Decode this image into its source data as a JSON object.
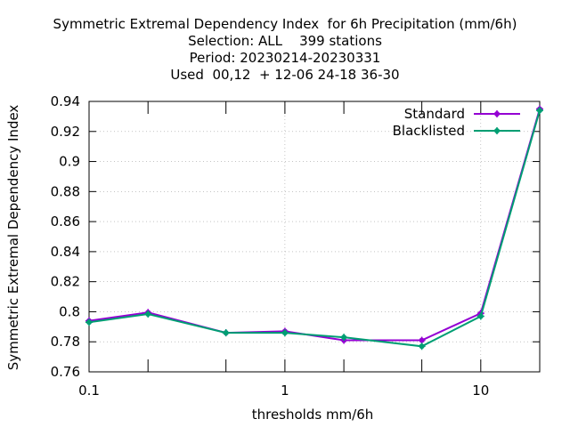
{
  "chart_data": {
    "type": "line",
    "title_lines": [
      "Symmetric Extremal Dependency Index  for 6h Precipitation (mm/6h)",
      "Selection: ALL    399 stations",
      "Period: 20230214-20230331",
      "Used  00,12  + 12-06 24-18 36-30"
    ],
    "xlabel": "thresholds mm/6h",
    "ylabel": "Symmetric Extremal Dependency Index",
    "xscale": "log",
    "xlim": [
      0.1,
      20
    ],
    "ylim": [
      0.76,
      0.94
    ],
    "x_ticks": [
      0.1,
      1,
      10
    ],
    "x_tick_labels": [
      "0.1",
      "1",
      "10"
    ],
    "y_ticks": [
      0.76,
      0.78,
      0.8,
      0.82,
      0.84,
      0.86,
      0.88,
      0.9,
      0.92,
      0.94
    ],
    "y_tick_labels": [
      "0.76",
      "0.78",
      "0.8",
      "0.82",
      "0.84",
      "0.86",
      "0.88",
      "0.9",
      "0.92",
      "0.94"
    ],
    "grid": true,
    "legend_position": "top-right",
    "x": [
      0.1,
      0.2,
      0.5,
      1,
      2,
      5,
      10,
      20
    ],
    "series": [
      {
        "name": "Standard",
        "color": "#9400d3",
        "values": [
          0.794,
          0.7995,
          0.786,
          0.787,
          0.781,
          0.781,
          0.799,
          0.935
        ]
      },
      {
        "name": "Blacklisted",
        "color": "#009e73",
        "values": [
          0.793,
          0.7985,
          0.786,
          0.786,
          0.783,
          0.777,
          0.797,
          0.934
        ]
      }
    ]
  }
}
